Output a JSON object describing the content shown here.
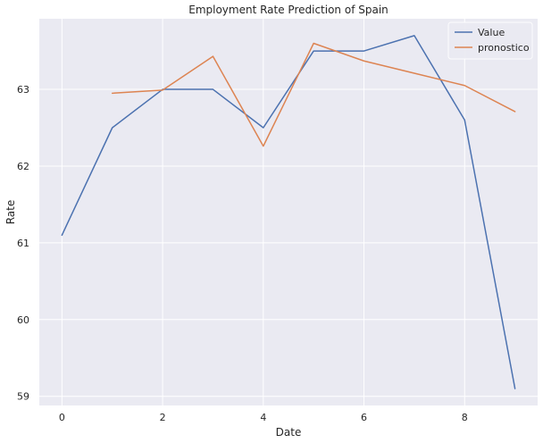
{
  "chart_data": {
    "type": "line",
    "title": "Employment Rate Prediction of Spain",
    "xlabel": "Date",
    "ylabel": "Rate",
    "xlim": [
      -0.45,
      9.45
    ],
    "ylim": [
      58.88,
      63.92
    ],
    "xticks": [
      0,
      2,
      4,
      6,
      8
    ],
    "yticks": [
      59,
      60,
      61,
      62,
      63
    ],
    "grid": true,
    "legend_position": "top-right",
    "series": [
      {
        "name": "Value",
        "color": "#4c72b0",
        "x": [
          0,
          1,
          2,
          3,
          4,
          5,
          6,
          7,
          8,
          9
        ],
        "values": [
          61.1,
          62.5,
          63.0,
          63.0,
          62.5,
          63.5,
          63.5,
          63.7,
          62.6,
          59.1
        ]
      },
      {
        "name": "pronostico",
        "color": "#dd8452",
        "x": [
          1,
          2,
          3,
          4,
          5,
          6,
          7,
          8,
          9
        ],
        "values": [
          62.95,
          62.99,
          63.43,
          62.26,
          63.6,
          63.37,
          63.21,
          63.05,
          62.71
        ]
      }
    ]
  }
}
